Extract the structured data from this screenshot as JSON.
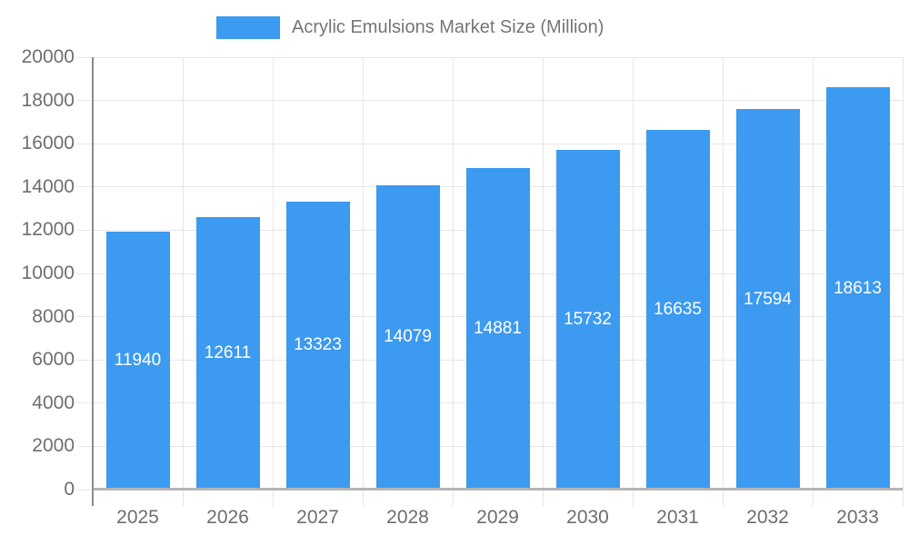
{
  "chart_data": {
    "type": "bar",
    "title": "Acrylic Emulsions Market Size (Million)",
    "legend": [
      "Acrylic Emulsions Market Size (Million)"
    ],
    "legend_position": "top",
    "categories": [
      "2025",
      "2026",
      "2027",
      "2028",
      "2029",
      "2030",
      "2031",
      "2032",
      "2033"
    ],
    "values": [
      11940,
      12611,
      13323,
      14079,
      14881,
      15732,
      16635,
      17594,
      18613
    ],
    "data_labels_visible": true,
    "xlabel": "",
    "ylabel": "",
    "ylim": [
      0,
      20000
    ],
    "y_ticks": [
      0,
      2000,
      4000,
      6000,
      8000,
      10000,
      12000,
      14000,
      16000,
      18000,
      20000
    ],
    "grid": "horizontal-and-vertical",
    "colors": {
      "bar": "#3C9AF0",
      "bar_label_text": "#FFFFFF",
      "axis_text": "#6E6E6E",
      "legend_text": "#757575",
      "gridline": "#E6E6E6",
      "axis_line": "#8C8C8C",
      "baseline": "#B5B5B5"
    }
  }
}
